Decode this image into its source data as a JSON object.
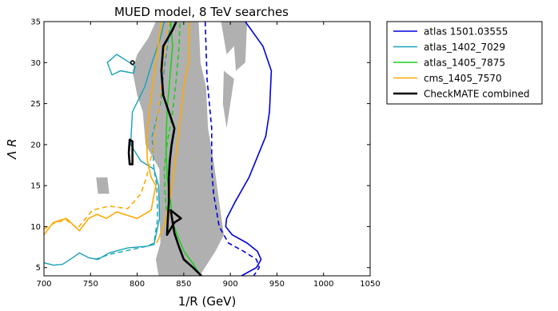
{
  "chart_data": {
    "type": "line",
    "title": "MUED model, 8 TeV searches",
    "xlabel": "1/R (GeV)",
    "ylabel": "Λ R",
    "xlim": [
      700,
      1050
    ],
    "ylim": [
      4,
      35
    ],
    "xticks": [
      700,
      750,
      800,
      850,
      900,
      950,
      1000,
      1050
    ],
    "yticks": [
      5,
      10,
      15,
      20,
      25,
      30,
      35
    ],
    "grid": false,
    "legend_position": "outside-right-top",
    "shaded_region": {
      "color": "#b0b0b0",
      "polygons": [
        [
          [
            829,
            35
          ],
          [
            866,
            35
          ],
          [
            868,
            30
          ],
          [
            874,
            27
          ],
          [
            876,
            22
          ],
          [
            882,
            18
          ],
          [
            888,
            13
          ],
          [
            893,
            9
          ],
          [
            884,
            7
          ],
          [
            867,
            4
          ],
          [
            823,
            4
          ],
          [
            820,
            6
          ],
          [
            825,
            8
          ],
          [
            824,
            12
          ],
          [
            824,
            17
          ],
          [
            809,
            20
          ],
          [
            806,
            24
          ],
          [
            800,
            26
          ],
          [
            795,
            29
          ],
          [
            800,
            31
          ],
          [
            812,
            33
          ],
          [
            820,
            35
          ]
        ],
        [
          [
            890,
            35
          ],
          [
            918,
            35
          ],
          [
            916,
            30
          ],
          [
            906,
            29
          ],
          [
            904,
            32
          ],
          [
            896,
            31
          ]
        ],
        [
          [
            893,
            29
          ],
          [
            904,
            28
          ],
          [
            896,
            22
          ],
          [
            892,
            25
          ]
        ],
        [
          [
            756,
            16
          ],
          [
            768,
            16
          ],
          [
            770,
            14
          ],
          [
            758,
            14
          ]
        ]
      ]
    },
    "series": [
      {
        "name": "atlas 1501.03555",
        "color": "#0000dd",
        "width": 1.6,
        "solid": [
          [
            916,
            35
          ],
          [
            935,
            32
          ],
          [
            944,
            29
          ],
          [
            942,
            24
          ],
          [
            938,
            21
          ],
          [
            920,
            16
          ],
          [
            905,
            13
          ],
          [
            896,
            11
          ],
          [
            895,
            10
          ],
          [
            902,
            9
          ],
          [
            918,
            8
          ],
          [
            929,
            7
          ],
          [
            933,
            6
          ],
          [
            928,
            5
          ],
          [
            912,
            4
          ]
        ],
        "dashed": [
          [
            873,
            35
          ],
          [
            875,
            28
          ],
          [
            880,
            22
          ],
          [
            880,
            17
          ],
          [
            882,
            14
          ],
          [
            888,
            10
          ],
          [
            898,
            8
          ],
          [
            914,
            7
          ],
          [
            928,
            6
          ],
          [
            931,
            5
          ],
          [
            925,
            4
          ]
        ]
      },
      {
        "name": "atlas_1402_7029",
        "color": "#17a2b8",
        "width": 1.4,
        "solid": [
          [
            700,
            5.6
          ],
          [
            710,
            5.3
          ],
          [
            720,
            5.4
          ],
          [
            732,
            6.3
          ],
          [
            738,
            6.8
          ],
          [
            748,
            6.2
          ],
          [
            758,
            6
          ],
          [
            770,
            6.8
          ],
          [
            790,
            7.4
          ],
          [
            810,
            7.6
          ],
          [
            818,
            7.8
          ],
          [
            824,
            11
          ],
          [
            823,
            15
          ],
          [
            818,
            17
          ],
          [
            804,
            18
          ],
          [
            793,
            20
          ],
          [
            795,
            24
          ],
          [
            808,
            27
          ],
          [
            816,
            30
          ],
          [
            825,
            33
          ],
          [
            829,
            35
          ]
        ],
        "closed": [
          [
            768,
            30
          ],
          [
            778,
            31
          ],
          [
            792,
            30
          ],
          [
            798,
            29.5
          ],
          [
            796,
            28.7
          ],
          [
            782,
            29
          ],
          [
            773,
            28.5
          ]
        ],
        "dashed": [
          [
            755,
            6
          ],
          [
            770,
            6.6
          ],
          [
            790,
            7.1
          ],
          [
            810,
            7.6
          ],
          [
            818,
            8
          ],
          [
            822,
            11
          ],
          [
            821,
            15
          ],
          [
            818,
            17
          ],
          [
            816,
            21
          ],
          [
            825,
            25
          ],
          [
            830,
            30
          ],
          [
            836,
            35
          ]
        ]
      },
      {
        "name": "atlas_1405_7875",
        "color": "#22cc22",
        "width": 1.6,
        "solid": [
          [
            868,
            4
          ],
          [
            860,
            5.5
          ],
          [
            850,
            7
          ],
          [
            843,
            9
          ],
          [
            838,
            10.5
          ],
          [
            836,
            13
          ],
          [
            832,
            16
          ],
          [
            831,
            20
          ],
          [
            832,
            24
          ],
          [
            835,
            28
          ],
          [
            838,
            32
          ],
          [
            836,
            35
          ]
        ],
        "dashed": [
          [
            833,
            10
          ],
          [
            830,
            14
          ],
          [
            829,
            17
          ],
          [
            832,
            20
          ],
          [
            838,
            24
          ],
          [
            842,
            28
          ],
          [
            845,
            32
          ],
          [
            846,
            35
          ]
        ]
      },
      {
        "name": "cms_1405_7570",
        "color": "#ffaa00",
        "width": 1.6,
        "solid": [
          [
            700,
            9
          ],
          [
            710,
            10.5
          ],
          [
            724,
            11
          ],
          [
            738,
            9.5
          ],
          [
            748,
            11
          ],
          [
            757,
            11.5
          ],
          [
            767,
            11
          ],
          [
            778,
            11.8
          ],
          [
            800,
            11
          ],
          [
            815,
            12
          ],
          [
            820,
            15
          ],
          [
            815,
            16
          ],
          [
            811,
            18
          ],
          [
            810,
            21
          ],
          [
            814,
            25
          ],
          [
            820,
            30
          ],
          [
            826,
            35
          ]
        ],
        "dashed": [
          [
            700,
            9.7
          ],
          [
            712,
            10.5
          ],
          [
            724,
            10.8
          ],
          [
            736,
            9.8
          ],
          [
            752,
            12
          ],
          [
            770,
            12.5
          ],
          [
            790,
            12.2
          ],
          [
            804,
            14
          ],
          [
            810,
            16
          ],
          [
            818,
            20
          ],
          [
            824,
            25
          ],
          [
            828,
            30
          ],
          [
            834,
            35
          ]
        ],
        "solid2": [
          [
            821,
            8
          ],
          [
            830,
            10.5
          ],
          [
            836,
            14
          ],
          [
            842,
            19
          ],
          [
            846,
            23
          ],
          [
            850,
            27
          ],
          [
            855,
            30
          ],
          [
            856,
            35
          ]
        ]
      },
      {
        "name": "CheckMATE combined",
        "color": "#000000",
        "width": 2.6,
        "solid": [
          [
            869,
            4
          ],
          [
            860,
            5
          ],
          [
            850,
            6
          ],
          [
            845,
            7.5
          ],
          [
            840,
            9.2
          ],
          [
            836,
            12
          ],
          [
            847,
            11
          ],
          [
            840,
            10.5
          ],
          [
            832,
            9
          ],
          [
            833,
            11
          ],
          [
            834,
            13
          ],
          [
            834,
            16
          ],
          [
            835,
            18
          ],
          [
            837,
            20
          ],
          [
            840,
            22
          ],
          [
            834,
            24
          ],
          [
            828,
            26
          ],
          [
            826,
            29
          ],
          [
            828,
            32
          ],
          [
            838,
            34
          ],
          [
            842,
            35
          ]
        ],
        "closed": [
          [
            792,
            20.6
          ],
          [
            795,
            20.4
          ],
          [
            795,
            17.6
          ],
          [
            792,
            17.6
          ],
          [
            791,
            19
          ]
        ],
        "marker": [
          795,
          30
        ]
      }
    ],
    "legend": [
      {
        "label": "atlas 1501.03555",
        "color": "#0000dd"
      },
      {
        "label": "atlas_1402_7029",
        "color": "#17a2b8"
      },
      {
        "label": "atlas_1405_7875",
        "color": "#22cc22"
      },
      {
        "label": "cms_1405_7570",
        "color": "#ffaa00"
      },
      {
        "label": "CheckMATE combined",
        "color": "#000000"
      }
    ]
  }
}
